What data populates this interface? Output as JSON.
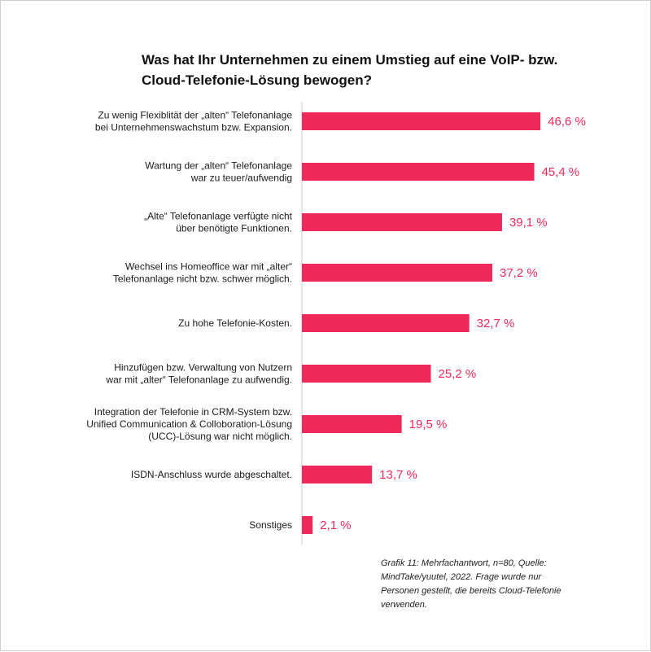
{
  "colors": {
    "bar": "#ef2a5b",
    "axis": "#cccccc",
    "text": "#1a1a1a"
  },
  "chart_data": {
    "type": "bar",
    "orientation": "horizontal",
    "title": "Was hat Ihr Unternehmen zu einem Umstieg auf eine VoIP- bzw. Cloud-Telefonie-Lösung bewogen?",
    "title_lines": [
      "Was hat Ihr Unternehmen zu einem Umstieg auf eine VoIP- bzw.",
      "Cloud-Telefonie-Lösung bewogen?"
    ],
    "categories": [
      [
        "Zu wenig Flexiblität der „alten“ Telefonanlage",
        "bei Unternehmenswachstum bzw. Expansion."
      ],
      [
        "Wartung der „alten“ Telefonanlage",
        "war zu teuer/aufwendig"
      ],
      [
        "„Alte“ Telefonanlage verfügte nicht",
        "über benötigte Funktionen."
      ],
      [
        "Wechsel ins Homeoffice war mit „alter“",
        "Telefonanlage nicht bzw. schwer möglich."
      ],
      [
        "Zu hohe Telefonie-Kosten."
      ],
      [
        "Hinzufügen bzw. Verwaltung von Nutzern",
        "war mit „alter“ Telefonanlage zu aufwendig."
      ],
      [
        "Integration der Telefonie in CRM-System bzw.",
        "Unified Communication & Colloboration-Lösung",
        "(UCC)-Lösung war nicht möglich."
      ],
      [
        "ISDN-Anschluss wurde abgeschaltet."
      ],
      [
        "Sonstiges"
      ]
    ],
    "values": [
      46.6,
      45.4,
      39.1,
      37.2,
      32.7,
      25.2,
      19.5,
      13.7,
      2.1
    ],
    "value_labels": [
      "46,6 %",
      "45,4 %",
      "39,1 %",
      "37,2 %",
      "32,7 %",
      "25,2 %",
      "19,5 %",
      "13,7 %",
      "2,1 %"
    ],
    "xlim": [
      0,
      50
    ],
    "grid": false,
    "legend": "none"
  },
  "footnote_lines": [
    "Grafik 11: Mehrfachantwort, n=80, Quelle:",
    "MindTake/yuutel, 2022. Frage wurde nur",
    "Personen gestellt, die bereits Cloud-Telefonie",
    "verwenden."
  ]
}
